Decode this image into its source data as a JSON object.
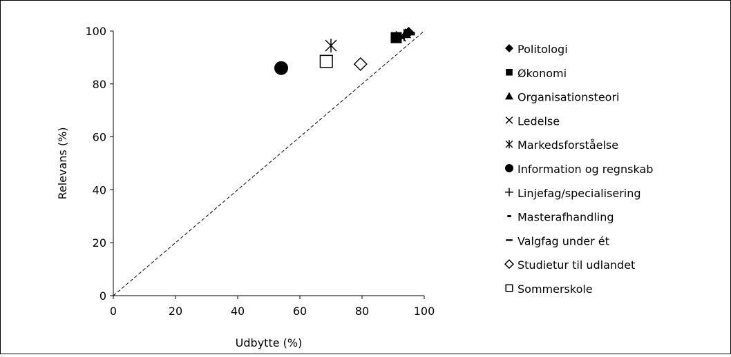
{
  "chart_data": {
    "type": "scatter",
    "xlabel": "Udbytte (%)",
    "ylabel": "Relevans (%)",
    "xlim": [
      0,
      100
    ],
    "ylim": [
      0,
      100
    ],
    "x_ticks": [
      0,
      20,
      40,
      60,
      80,
      100
    ],
    "y_ticks": [
      0,
      20,
      40,
      60,
      80,
      100
    ],
    "grid": false,
    "legend_position": "right",
    "reference_line": {
      "style": "dashed",
      "x": [
        0,
        100
      ],
      "y": [
        0,
        100
      ]
    },
    "series": [
      {
        "name": "Politologi",
        "marker": "diamond-filled",
        "points": [
          {
            "x": 95,
            "y": 99.5
          }
        ]
      },
      {
        "name": "Økonomi",
        "marker": "square-filled",
        "points": [
          {
            "x": 91,
            "y": 97.5
          }
        ]
      },
      {
        "name": "Organisationsteori",
        "marker": "triangle-filled",
        "points": [
          {
            "x": 94,
            "y": 99
          }
        ]
      },
      {
        "name": "Ledelse",
        "marker": "x",
        "points": [
          {
            "x": 92.5,
            "y": 98
          }
        ]
      },
      {
        "name": "Markedsforståelse",
        "marker": "asterisk",
        "points": [
          {
            "x": 70,
            "y": 94.5
          }
        ]
      },
      {
        "name": "Information og regnskab",
        "marker": "circle-filled",
        "points": [
          {
            "x": 54,
            "y": 86
          }
        ]
      },
      {
        "name": "Linjefag/specialisering",
        "marker": "plus",
        "points": [
          {
            "x": 93.5,
            "y": 98.5
          }
        ]
      },
      {
        "name": "Masterafhandling",
        "marker": "short-dash",
        "points": [
          {
            "x": 96,
            "y": 99
          }
        ]
      },
      {
        "name": "Valgfag under ét",
        "marker": "long-dash",
        "points": [
          {
            "x": 92,
            "y": 97.5
          }
        ]
      },
      {
        "name": "Studietur til udlandet",
        "marker": "diamond-open",
        "points": [
          {
            "x": 79.5,
            "y": 87.5
          }
        ]
      },
      {
        "name": "Sommerskole",
        "marker": "square-open",
        "points": [
          {
            "x": 68.5,
            "y": 88.5
          }
        ]
      }
    ]
  }
}
